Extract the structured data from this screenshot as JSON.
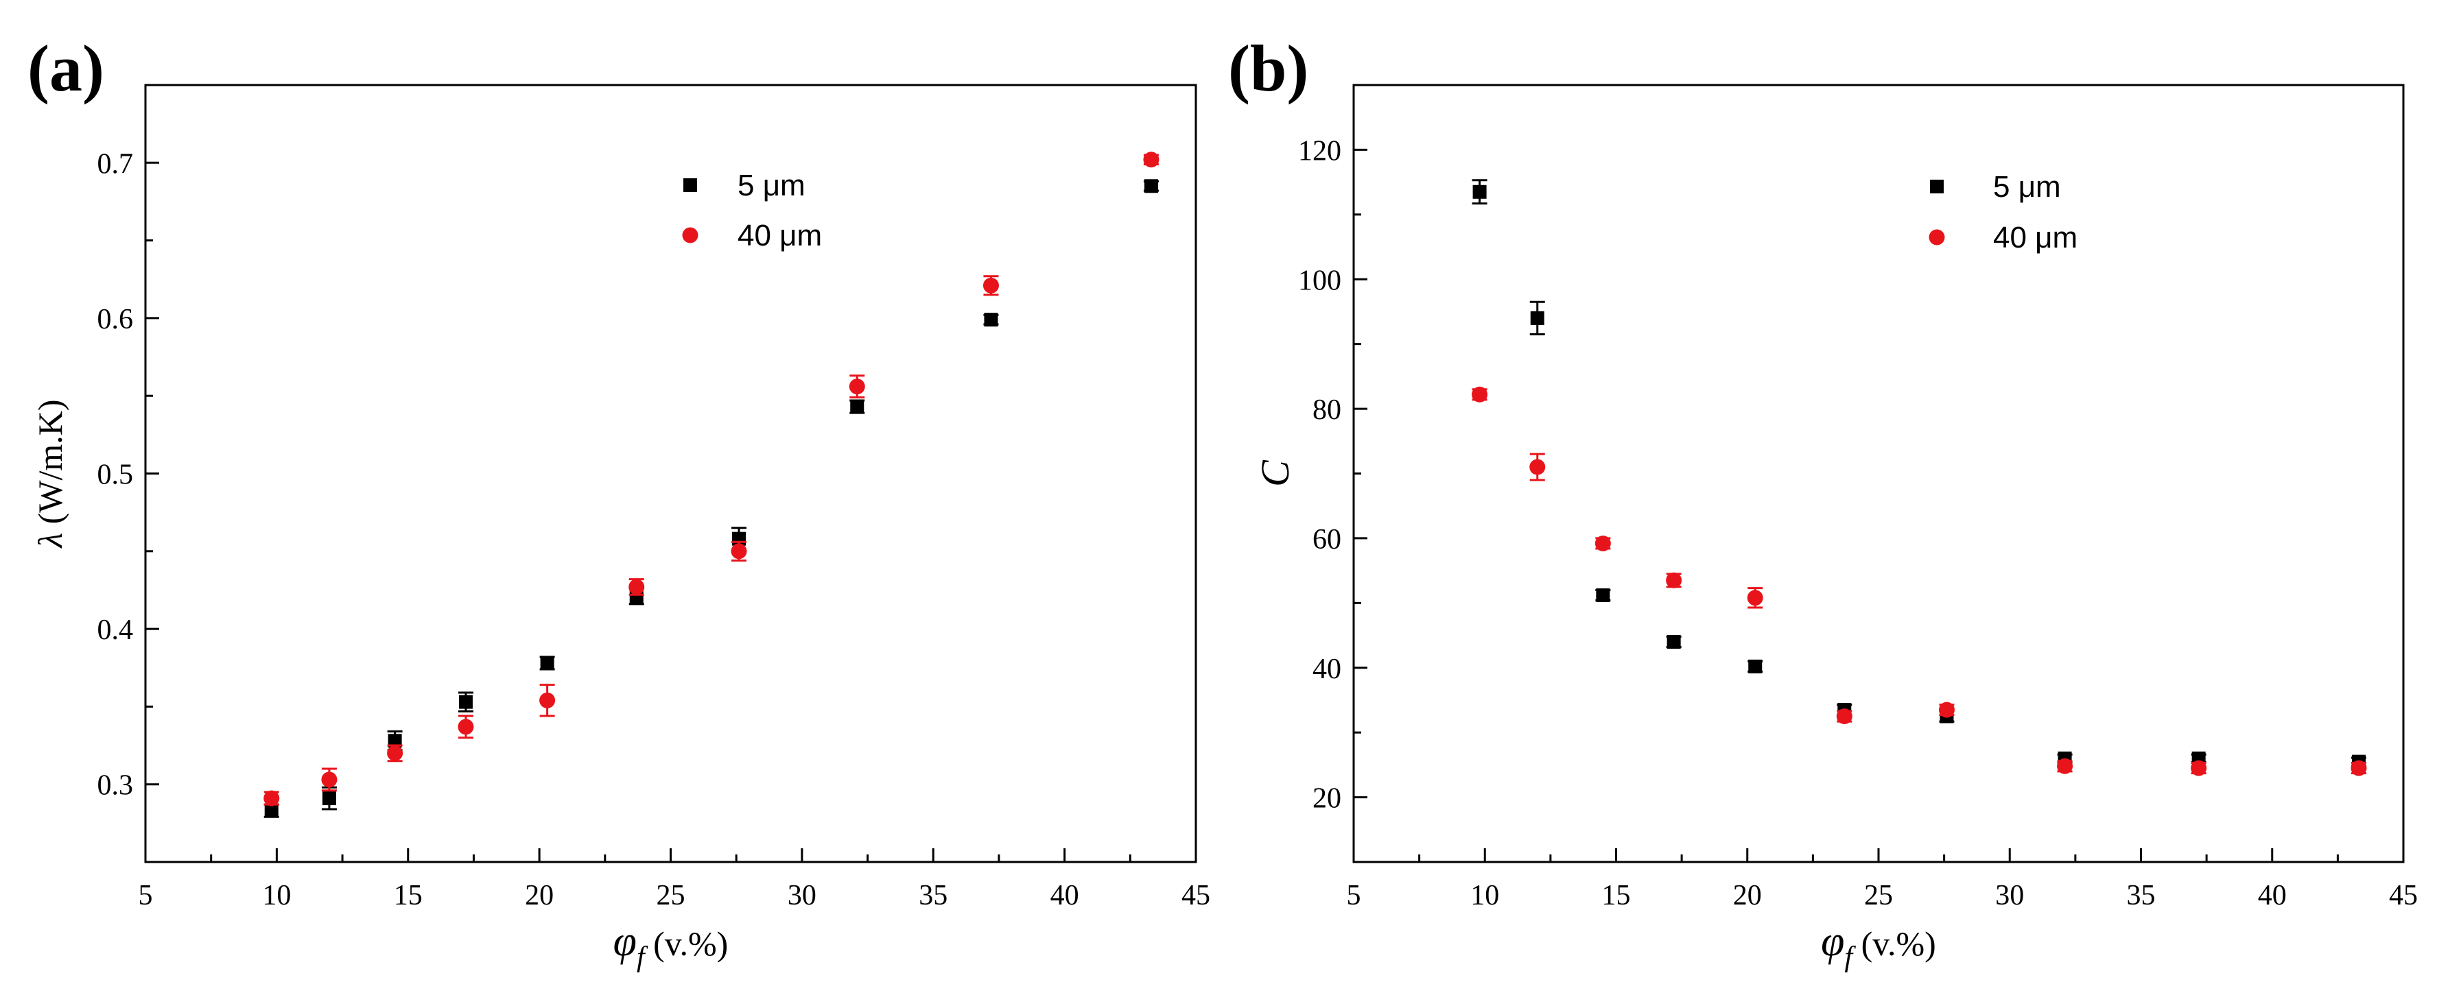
{
  "chart_data": [
    {
      "type": "scatter",
      "panel_label": "(a)",
      "xlabel": {
        "symbol": "φ",
        "subscript": "f",
        "unit": "(v.%)"
      },
      "ylabel": {
        "symbol": "λ",
        "unit": "(W/m.K)"
      },
      "xlim": [
        5,
        45
      ],
      "ylim": [
        0.25,
        0.75
      ],
      "xticks": [
        5,
        10,
        15,
        20,
        25,
        30,
        35,
        40,
        45
      ],
      "yticks": [
        0.3,
        0.4,
        0.5,
        0.6,
        0.7
      ],
      "ytick_labels": [
        "0.3",
        "0.4",
        "0.5",
        "0.6",
        "0.7"
      ],
      "legend": "top-middle",
      "series": [
        {
          "name": "5 μm",
          "marker": "square",
          "color": "#000000",
          "x": [
            9.8,
            12.0,
            14.5,
            17.2,
            20.3,
            23.7,
            27.6,
            32.1,
            37.2,
            43.3
          ],
          "y": [
            0.283,
            0.291,
            0.328,
            0.353,
            0.378,
            0.421,
            0.458,
            0.543,
            0.599,
            0.685
          ],
          "err": [
            0.004,
            0.007,
            0.006,
            0.006,
            0.004,
            0.005,
            0.007,
            0.004,
            0.003,
            0.003
          ]
        },
        {
          "name": "40 μm",
          "marker": "circle",
          "color": "#e8141b",
          "x": [
            9.8,
            12.0,
            14.5,
            17.2,
            20.3,
            23.7,
            27.6,
            32.1,
            37.2,
            43.3
          ],
          "y": [
            0.291,
            0.303,
            0.32,
            0.337,
            0.354,
            0.427,
            0.45,
            0.556,
            0.621,
            0.702
          ],
          "err": [
            0.004,
            0.007,
            0.005,
            0.007,
            0.01,
            0.005,
            0.006,
            0.007,
            0.006,
            0.003
          ]
        }
      ]
    },
    {
      "type": "scatter",
      "panel_label": "(b)",
      "xlabel": {
        "symbol": "φ",
        "subscript": "f",
        "unit": "(v.%)"
      },
      "ylabel": {
        "symbol": "C",
        "unit": ""
      },
      "xlim": [
        5,
        45
      ],
      "ylim": [
        10,
        130
      ],
      "xticks": [
        5,
        10,
        15,
        20,
        25,
        30,
        35,
        40,
        45
      ],
      "yticks": [
        20,
        40,
        60,
        80,
        100,
        120
      ],
      "ytick_labels": [
        "20",
        "40",
        "60",
        "80",
        "100",
        "120"
      ],
      "legend": "top-middle",
      "series": [
        {
          "name": "5 μm",
          "marker": "square",
          "color": "#000000",
          "x": [
            9.8,
            12.0,
            14.5,
            17.2,
            20.3,
            23.7,
            27.6,
            32.1,
            37.2,
            43.3
          ],
          "y": [
            113.5,
            94.0,
            51.2,
            44.0,
            40.2,
            33.5,
            32.5,
            26.0,
            26.0,
            25.5
          ],
          "err": [
            1.8,
            2.5,
            0.8,
            0.8,
            0.8,
            0.8,
            0.8,
            0.6,
            0.6,
            0.6
          ]
        },
        {
          "name": "40 μm",
          "marker": "circle",
          "color": "#e8141b",
          "x": [
            9.8,
            12.0,
            14.5,
            17.2,
            20.3,
            23.7,
            27.6,
            32.1,
            37.2,
            43.3
          ],
          "y": [
            82.2,
            71.0,
            59.2,
            53.5,
            50.8,
            32.5,
            33.5,
            24.8,
            24.5,
            24.5
          ],
          "err": [
            0.8,
            2.0,
            0.8,
            1.0,
            1.5,
            0.8,
            0.8,
            0.8,
            0.8,
            0.8
          ]
        }
      ]
    }
  ]
}
